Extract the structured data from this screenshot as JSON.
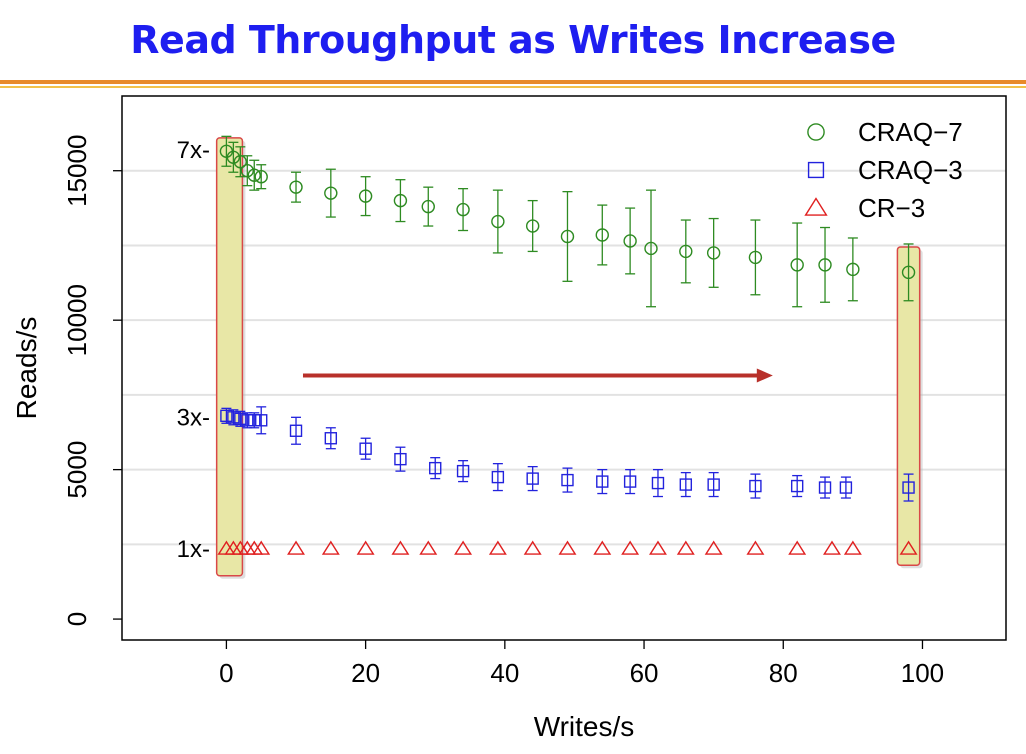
{
  "slide": {
    "title": "Read Throughput as Writes Increase",
    "colors": {
      "title": "#1e1ef0",
      "rule_primary": "#e88a2a",
      "rule_secondary": "#f2c24a"
    }
  },
  "chart_data": {
    "type": "scatter",
    "title": "",
    "xlabel": "Writes/s",
    "ylabel": "Reads/s",
    "xlim": [
      -15,
      112
    ],
    "ylim": [
      -700,
      17500
    ],
    "xticks": [
      0,
      20,
      40,
      60,
      80,
      100
    ],
    "yticks": [
      0,
      5000,
      10000,
      15000
    ],
    "grid": "horizontal",
    "legend_position": "top-right",
    "reference_labels": [
      {
        "text": "7x-",
        "y": 15700
      },
      {
        "text": "3x-",
        "y": 6750
      },
      {
        "text": "1x-",
        "y": 2350
      }
    ],
    "series": [
      {
        "name": "CRAQ−7",
        "marker": "circle",
        "color": "#2e8b22",
        "x": [
          0,
          1,
          2,
          3,
          4,
          5,
          10,
          15,
          20,
          25,
          29,
          34,
          39,
          44,
          49,
          54,
          58,
          61,
          66,
          70,
          76,
          82,
          86,
          90,
          98
        ],
        "y": [
          15650,
          15450,
          15300,
          15000,
          14850,
          14800,
          14450,
          14250,
          14150,
          14000,
          13800,
          13700,
          13300,
          13150,
          12800,
          12850,
          12650,
          12400,
          12300,
          12250,
          12100,
          11850,
          11850,
          11700,
          11600
        ],
        "err": [
          500,
          500,
          500,
          500,
          500,
          400,
          500,
          800,
          650,
          700,
          650,
          700,
          1050,
          850,
          1500,
          1000,
          1100,
          1950,
          1050,
          1150,
          1250,
          1400,
          1250,
          1050,
          950
        ]
      },
      {
        "name": "CRAQ−3",
        "marker": "square",
        "color": "#2222dd",
        "x": [
          0,
          1,
          2,
          3,
          4,
          5,
          10,
          15,
          20,
          25,
          30,
          34,
          39,
          44,
          49,
          54,
          58,
          62,
          66,
          70,
          76,
          82,
          86,
          89,
          98
        ],
        "y": [
          6800,
          6750,
          6700,
          6650,
          6650,
          6650,
          6300,
          6050,
          5700,
          5350,
          5050,
          4950,
          4750,
          4700,
          4650,
          4600,
          4600,
          4550,
          4500,
          4500,
          4450,
          4450,
          4400,
          4400,
          4400
        ],
        "err": [
          250,
          250,
          250,
          250,
          250,
          450,
          450,
          350,
          350,
          400,
          350,
          350,
          450,
          400,
          400,
          400,
          400,
          450,
          400,
          400,
          400,
          350,
          350,
          350,
          450
        ]
      },
      {
        "name": "CR−3",
        "marker": "triangle",
        "color": "#e02020",
        "x": [
          0,
          1,
          2,
          3,
          4,
          5,
          10,
          15,
          20,
          25,
          29,
          34,
          39,
          44,
          49,
          54,
          58,
          62,
          66,
          70,
          76,
          82,
          87,
          90,
          98
        ],
        "y": [
          2350,
          2350,
          2350,
          2350,
          2350,
          2350,
          2350,
          2350,
          2350,
          2350,
          2350,
          2350,
          2350,
          2350,
          2350,
          2350,
          2350,
          2350,
          2350,
          2350,
          2350,
          2350,
          2350,
          2350,
          2350
        ],
        "err": [
          0,
          0,
          0,
          0,
          0,
          0,
          0,
          0,
          0,
          0,
          0,
          0,
          0,
          0,
          0,
          0,
          0,
          0,
          0,
          0,
          0,
          0,
          0,
          0,
          0
        ]
      }
    ],
    "highlights": [
      {
        "x_range": [
          -1.4,
          2.3
        ],
        "y_range": [
          1450,
          16100
        ],
        "fill": "#e8e7a6",
        "stroke": "#d94848"
      },
      {
        "x_range": [
          96.4,
          99.6
        ],
        "y_range": [
          1800,
          12450
        ],
        "fill": "#e8e7a6",
        "stroke": "#d94848"
      }
    ],
    "annotation_arrow": {
      "from": [
        11,
        8150
      ],
      "to": [
        78.5,
        8150
      ],
      "color": "#b8302a"
    }
  }
}
